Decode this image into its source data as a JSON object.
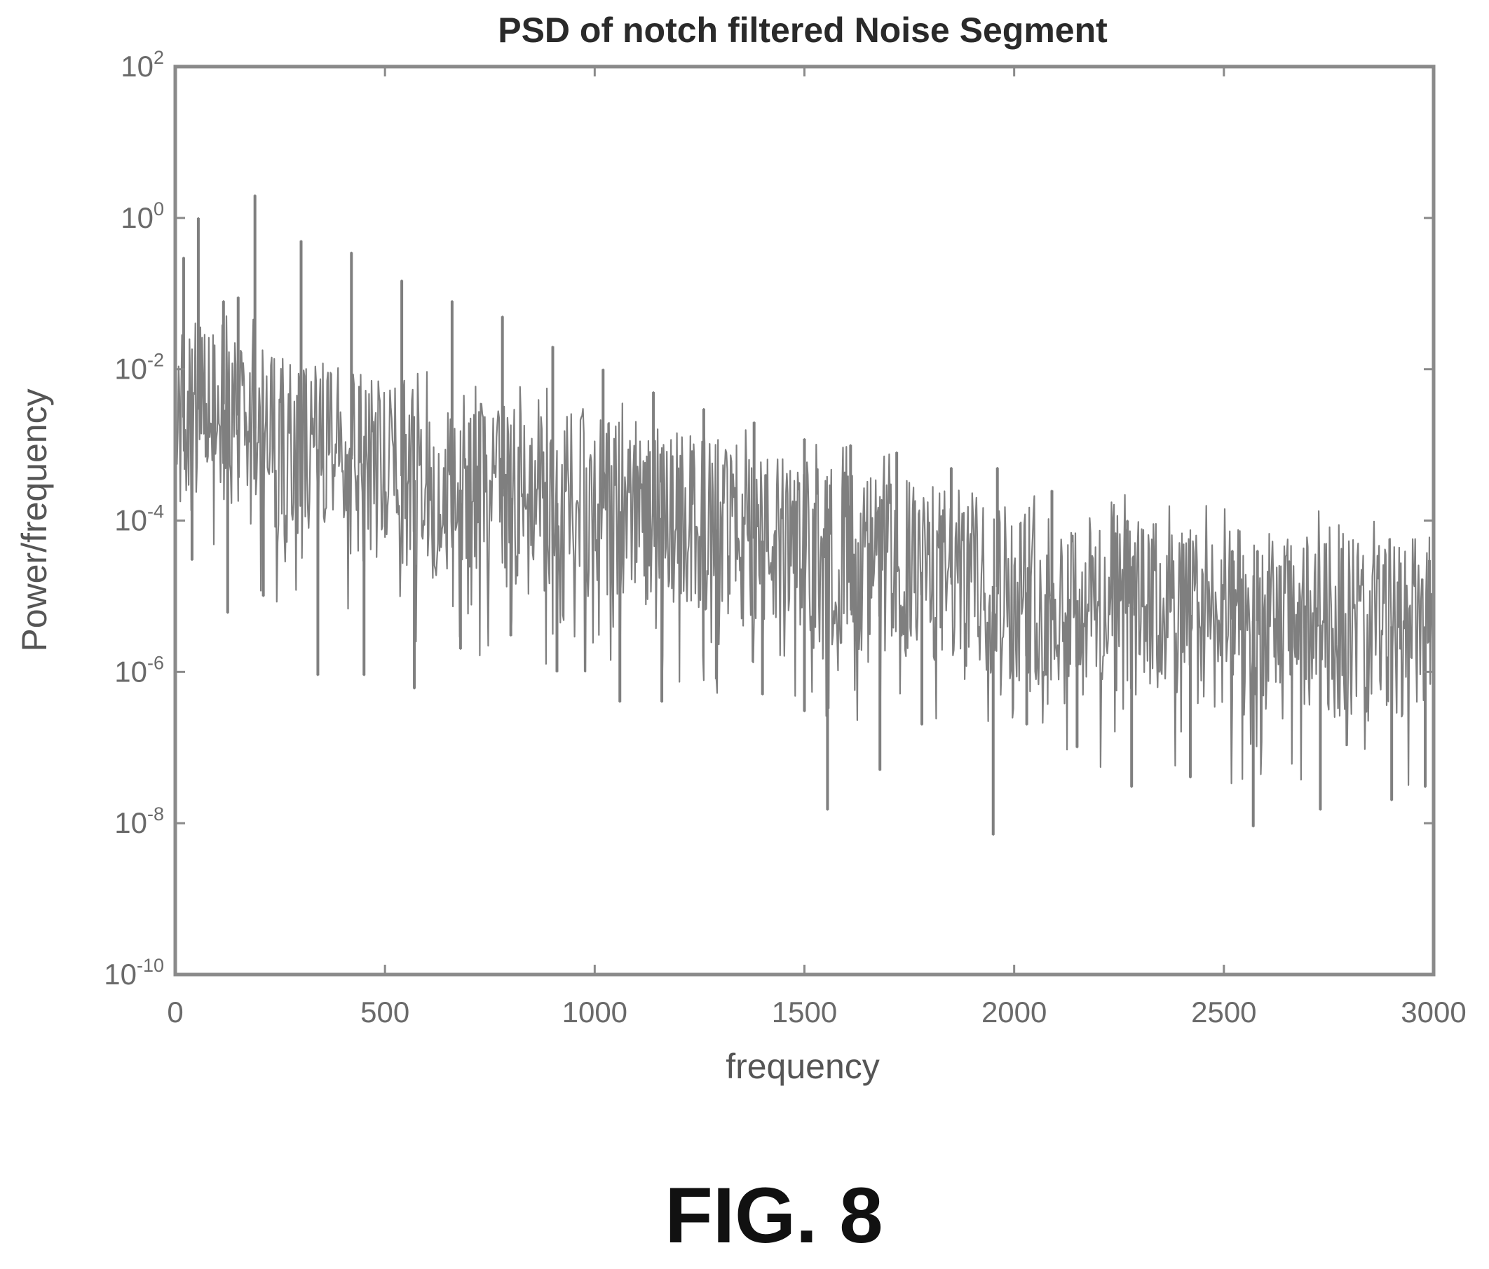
{
  "figure": {
    "caption": "FIG. 8"
  },
  "chart_data": {
    "type": "line",
    "title": "PSD of notch filtered Noise Segment",
    "xlabel": "frequency",
    "ylabel": "Power/frequency",
    "xlim": [
      0,
      3000
    ],
    "ylim": [
      1e-10,
      100
    ],
    "y_scale": "log",
    "x_ticks": [
      {
        "value": 0,
        "label": "0"
      },
      {
        "value": 500,
        "label": "500"
      },
      {
        "value": 1000,
        "label": "1000"
      },
      {
        "value": 1500,
        "label": "1500"
      },
      {
        "value": 2000,
        "label": "2000"
      },
      {
        "value": 2500,
        "label": "2500"
      },
      {
        "value": 3000,
        "label": "3000"
      }
    ],
    "y_ticks": [
      {
        "value": 100,
        "base": "10",
        "exp": "2"
      },
      {
        "value": 1,
        "base": "10",
        "exp": "0"
      },
      {
        "value": 0.01,
        "base": "10",
        "exp": "-2"
      },
      {
        "value": 0.0001,
        "base": "10",
        "exp": "-4"
      },
      {
        "value": 1e-06,
        "base": "10",
        "exp": "-6"
      },
      {
        "value": 1e-08,
        "base": "10",
        "exp": "-8"
      },
      {
        "value": 1e-10,
        "base": "10",
        "exp": "-10"
      }
    ],
    "grid": false,
    "legend": "none",
    "line_color": "#7f7f7f",
    "series": [
      {
        "trend": [
          [
            0,
            0.002
          ],
          [
            100,
            0.004
          ],
          [
            200,
            0.0015
          ],
          [
            400,
            0.0007
          ],
          [
            600,
            0.0003
          ],
          [
            800,
            0.0002
          ],
          [
            1000,
            0.00015
          ],
          [
            1200,
            0.0001
          ],
          [
            1500,
            4e-05
          ],
          [
            1800,
            2e-05
          ],
          [
            2000,
            1.2e-05
          ],
          [
            2200,
            8e-06
          ],
          [
            2500,
            5e-06
          ],
          [
            2800,
            4e-06
          ],
          [
            3000,
            4e-06
          ]
        ],
        "peaks": [
          [
            20,
            0.3
          ],
          [
            55,
            1.0
          ],
          [
            115,
            0.08
          ],
          [
            150,
            0.09
          ],
          [
            190,
            2.0
          ],
          [
            300,
            0.5
          ],
          [
            420,
            0.35
          ],
          [
            540,
            0.15
          ],
          [
            660,
            0.08
          ],
          [
            780,
            0.05
          ],
          [
            900,
            0.02
          ],
          [
            1020,
            0.01
          ],
          [
            1140,
            0.005
          ],
          [
            1260,
            0.003
          ],
          [
            1380,
            0.002
          ],
          [
            1500,
            0.0012
          ],
          [
            1610,
            0.001
          ],
          [
            1720,
            0.0008
          ],
          [
            1850,
            0.0005
          ],
          [
            1960,
            0.0005
          ],
          [
            2090,
            0.00025
          ],
          [
            2270,
            0.0001
          ],
          [
            2520,
            4e-05
          ],
          [
            2580,
            4e-05
          ],
          [
            2990,
            3e-05
          ]
        ],
        "dips": [
          [
            40,
            3e-05
          ],
          [
            125,
            6e-06
          ],
          [
            210,
            1e-05
          ],
          [
            340,
            9e-07
          ],
          [
            450,
            9e-07
          ],
          [
            570,
            6e-07
          ],
          [
            680,
            2e-06
          ],
          [
            800,
            3e-06
          ],
          [
            910,
            1e-06
          ],
          [
            1060,
            4e-07
          ],
          [
            1160,
            4e-07
          ],
          [
            1290,
            8e-07
          ],
          [
            1400,
            5e-07
          ],
          [
            1500,
            3e-07
          ],
          [
            1555,
            1.5e-08
          ],
          [
            1680,
            5e-08
          ],
          [
            1780,
            2e-07
          ],
          [
            1950,
            7e-09
          ],
          [
            2030,
            2e-07
          ],
          [
            2150,
            1e-07
          ],
          [
            2280,
            3e-08
          ],
          [
            2420,
            4e-08
          ],
          [
            2570,
            9e-09
          ],
          [
            2730,
            1.5e-08
          ],
          [
            2900,
            2e-08
          ],
          [
            2980,
            3e-08
          ]
        ]
      }
    ]
  }
}
